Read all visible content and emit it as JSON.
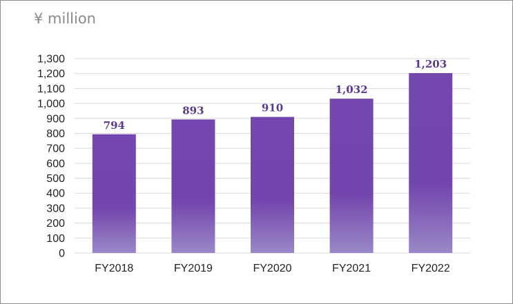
{
  "unit_label": "¥ million",
  "chart_data": {
    "type": "bar",
    "categories": [
      "FY2018",
      "FY2019",
      "FY2020",
      "FY2021",
      "FY2022"
    ],
    "values": [
      794,
      893,
      910,
      1032,
      1203
    ],
    "data_labels": [
      "794",
      "893",
      "910",
      "1,032",
      "1,203"
    ],
    "ylim": [
      0,
      1300
    ],
    "yticks": [
      0,
      100,
      200,
      300,
      400,
      500,
      600,
      700,
      800,
      900,
      1000,
      1100,
      1200,
      1300
    ],
    "ytick_labels": [
      "0",
      "100",
      "200",
      "300",
      "400",
      "500",
      "600",
      "700",
      "800",
      "900",
      "1,000",
      "1,100",
      "1,200",
      "1,300"
    ],
    "grid": true,
    "legend": "none",
    "colors": {
      "bar_top": "#7347ad",
      "bar_mid": "#7346ad",
      "bar_bottom": "#9a88c7",
      "grid": "#d9d9d9",
      "label": "#5a3a8c"
    }
  }
}
